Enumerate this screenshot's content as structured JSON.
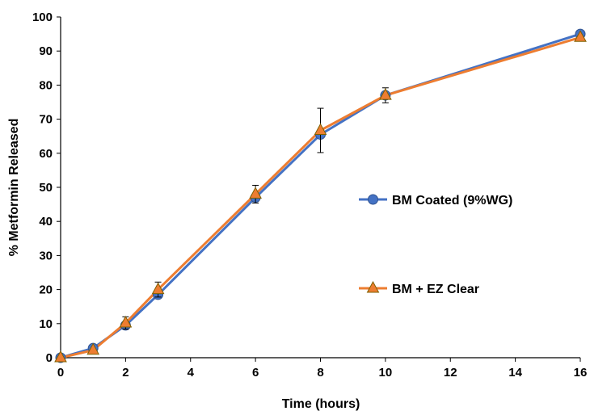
{
  "chart_data": {
    "type": "line",
    "xlabel": "Time (hours)",
    "ylabel": "% Metformin Released",
    "xlim": [
      0,
      16
    ],
    "ylim": [
      0,
      100
    ],
    "xticks": [
      "0",
      "2",
      "4",
      "6",
      "8",
      "10",
      "12",
      "14",
      "16"
    ],
    "yticks": [
      "0",
      "10",
      "20",
      "30",
      "40",
      "50",
      "60",
      "70",
      "80",
      "90",
      "100"
    ],
    "grid": false,
    "legend_position": "right",
    "series": [
      {
        "name": "BM Coated (9%WG)",
        "line_color": "#4472C4",
        "marker": "circle",
        "marker_color": "#4472C4",
        "x": [
          0,
          1,
          2,
          3,
          6,
          8,
          10,
          16
        ],
        "y": [
          0,
          2.8,
          9.5,
          18.5,
          47,
          65.5,
          77,
          95
        ],
        "error": [
          0,
          0,
          0,
          0,
          0,
          0,
          0,
          0
        ]
      },
      {
        "name": "BM + EZ Clear",
        "line_color": "#ED7D31",
        "marker": "triangle",
        "marker_color": "#ED7D31",
        "x": [
          0,
          1,
          2,
          3,
          6,
          8,
          10,
          16
        ],
        "y": [
          0,
          2.2,
          10.2,
          20,
          48,
          66.7,
          77,
          94
        ],
        "error": [
          0,
          0,
          1.8,
          2.2,
          2.6,
          6.5,
          2.2,
          0
        ]
      }
    ]
  }
}
